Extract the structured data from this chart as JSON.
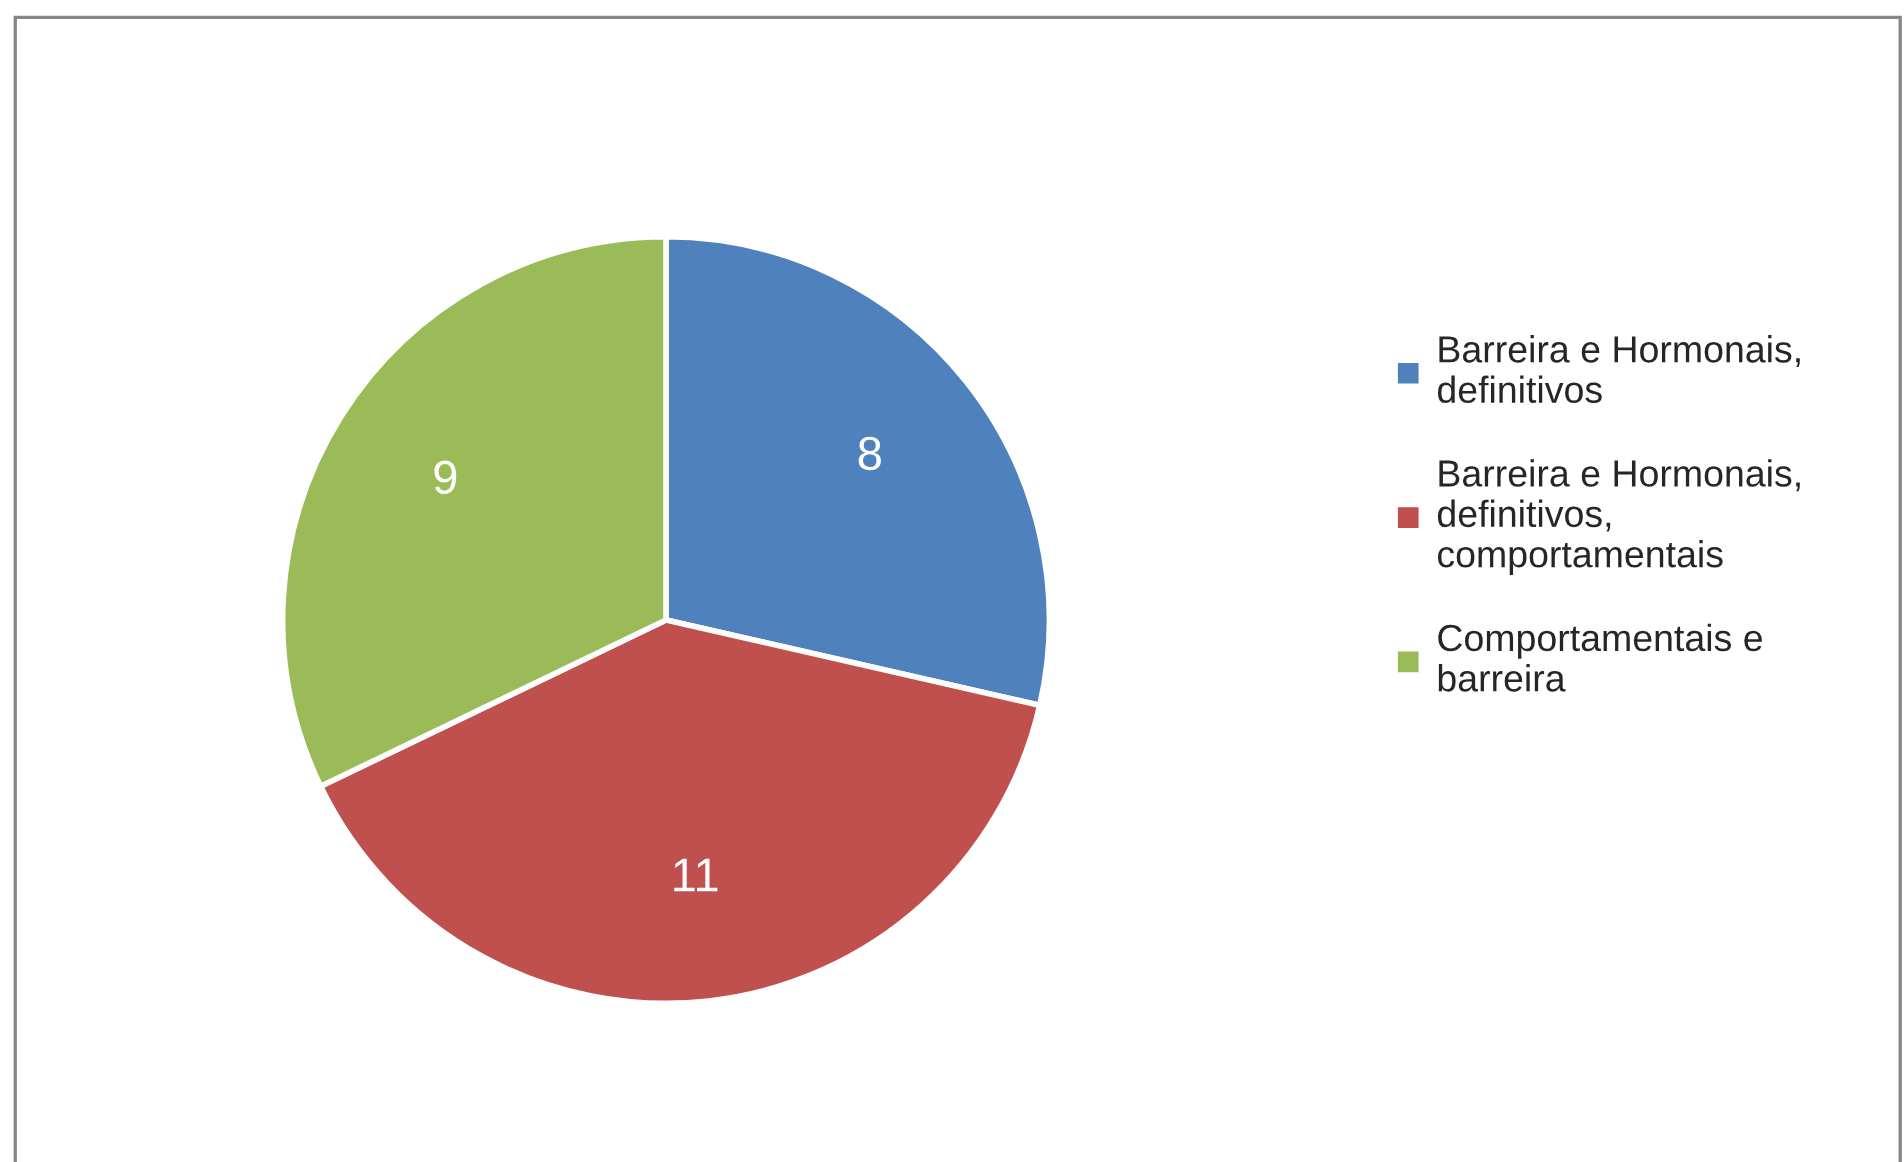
{
  "chart_data": {
    "type": "pie",
    "categories": [
      "Barreira e Hormonais,\ndefinitivos",
      "Barreira e Hormonais,\ndefinitivos,\ncomportamentais",
      "Comportamentais e\nbarreira"
    ],
    "values": [
      8,
      11,
      9
    ],
    "colors": [
      "#4f81bd",
      "#c0504d",
      "#9bbb59"
    ],
    "data_labels": true,
    "legend": "right"
  }
}
